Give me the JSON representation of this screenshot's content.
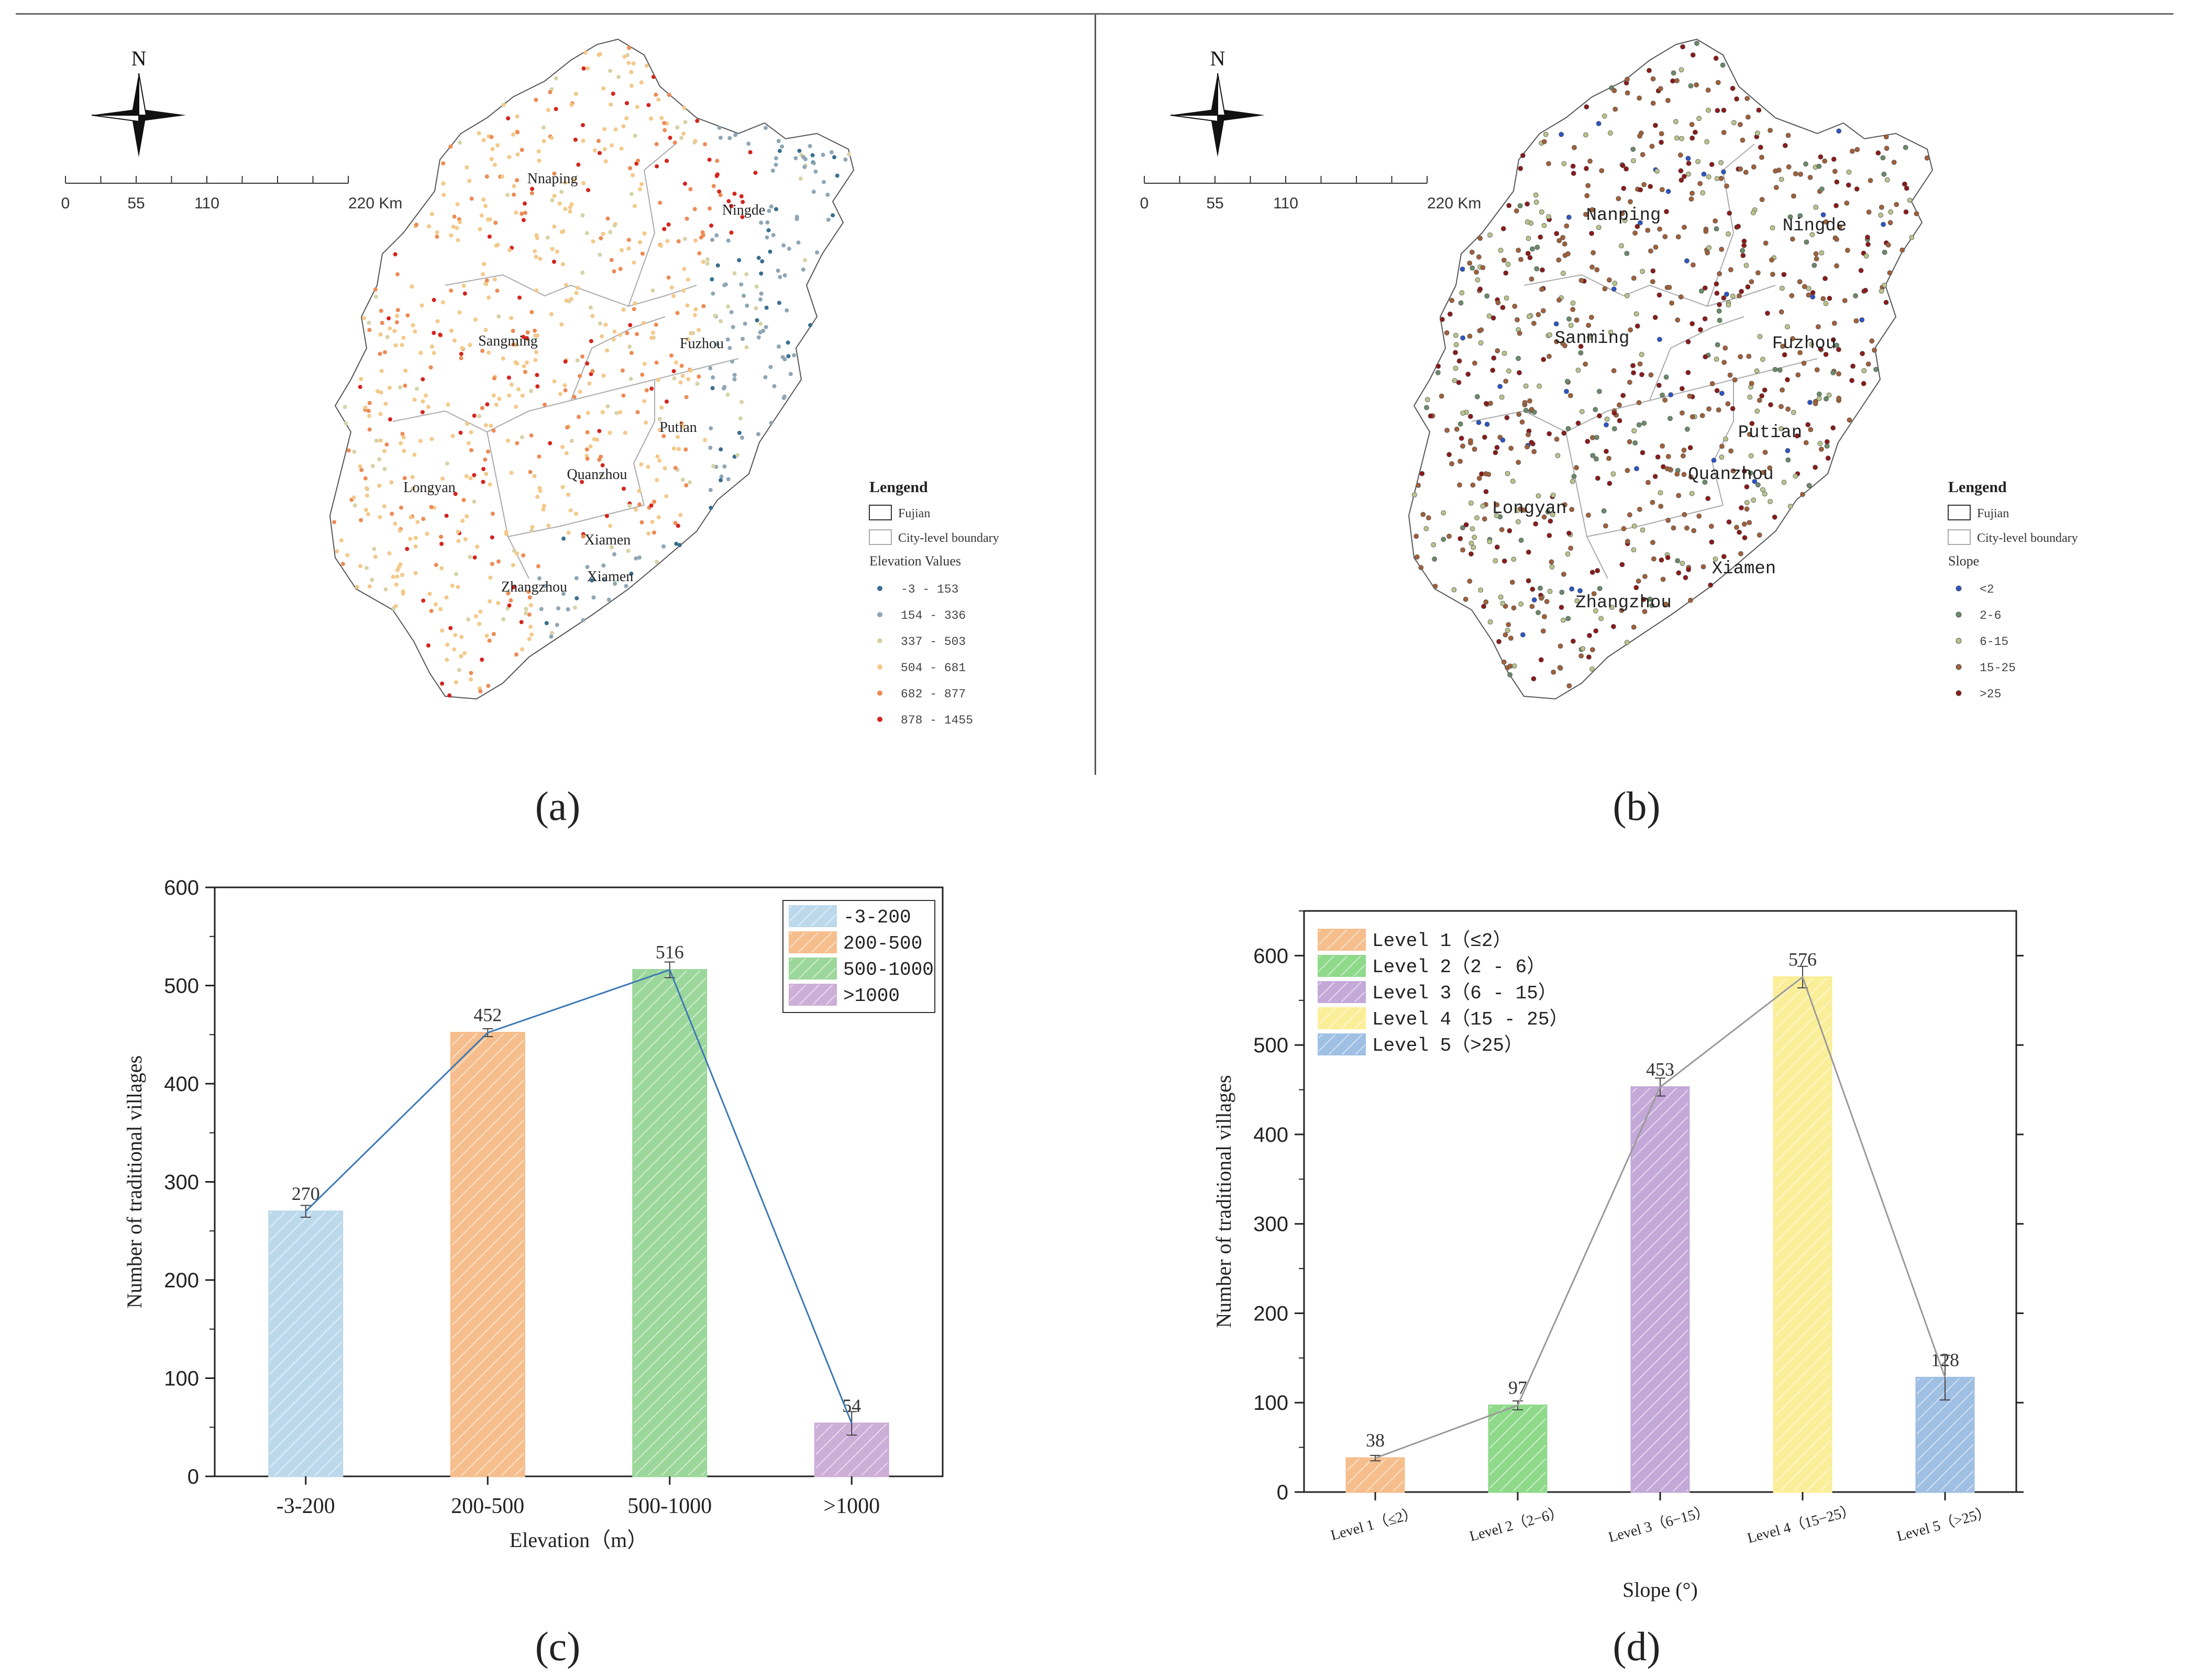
{
  "maps": [
    {
      "north_label": "N",
      "scale": {
        "ticks": [
          "0",
          "55",
          "110",
          "220 Km"
        ]
      },
      "cities": [
        "Nnaping",
        "Ningde",
        "Sangming",
        "Fuzhou",
        "Putian",
        "Longyan",
        "Quanzhou",
        "Xiamen",
        "Xiamen",
        "Zhangzhou"
      ],
      "legend": {
        "title": "Lengend",
        "fujian": "Fujian",
        "boundary": "City-level boundary",
        "values_title": "Elevation Values",
        "classes": [
          {
            "label": "-3 - 153",
            "color": "#3a6f8f"
          },
          {
            "label": "154 - 336",
            "color": "#8fa6b5"
          },
          {
            "label": "337 - 503",
            "color": "#d8d2a8"
          },
          {
            "label": "504 - 681",
            "color": "#f3c98b"
          },
          {
            "label": "682 - 877",
            "color": "#ec8b55"
          },
          {
            "label": "878 - 1455",
            "color": "#d4251f"
          }
        ]
      },
      "caption": "(a)"
    },
    {
      "north_label": "N",
      "scale": {
        "ticks": [
          "0",
          "55",
          "110",
          "220 Km"
        ]
      },
      "cities": [
        "Nanping",
        "Ningde",
        "Sanming",
        "Fuzhou",
        "Putian",
        "Quanzhou",
        "Longyan",
        "Xiamen",
        "Zhangzhou"
      ],
      "legend": {
        "title": "Lengend",
        "fujian": "Fujian",
        "boundary": "City-level boundary",
        "values_title": "Slope",
        "classes": [
          {
            "label": "<2",
            "color": "#2b55c7"
          },
          {
            "label": "2-6",
            "color": "#6a8a6a"
          },
          {
            "label": "6-15",
            "color": "#b8c48c"
          },
          {
            "label": "15-25",
            "color": "#a0603a"
          },
          {
            "label": ">25",
            "color": "#8b1a1a"
          }
        ]
      },
      "caption": "(b)"
    }
  ],
  "chart_data": [
    {
      "type": "bar",
      "caption": "(c)",
      "categories": [
        "-3-200",
        "200-500",
        "500-1000",
        ">1000"
      ],
      "values": [
        270,
        452,
        516,
        54
      ],
      "colors": [
        "#bcd9ec",
        "#f5be8c",
        "#9bd79a",
        "#cdaed7"
      ],
      "legend": [
        "-3-200",
        "200-500",
        "500-1000",
        ">1000"
      ],
      "xlabel": "Elevation（m）",
      "ylabel": "Number of traditional villages",
      "ylim": [
        0,
        600
      ],
      "yticks": [
        "0",
        "100",
        "200",
        "300",
        "400",
        "500",
        "600"
      ],
      "line_color": "#3c78b5",
      "legend_position": "top-right"
    },
    {
      "type": "bar",
      "caption": "(d)",
      "categories": [
        "Level 1（≤2）",
        "Level 2（2−6）",
        "Level 3（6−15）",
        "Level 4（15−25）",
        "Level 5（>25）"
      ],
      "values": [
        38,
        97,
        453,
        576,
        128
      ],
      "colors": [
        "#f5be8c",
        "#8fd98b",
        "#c3a8d8",
        "#fbee98",
        "#9fbfe3"
      ],
      "legend": [
        "Level 1（≤2）",
        "Level 2（2 - 6）",
        "Level 3（6 - 15）",
        "Level 4（15 - 25）",
        "Level 5（>25）"
      ],
      "xlabel": "Slope (°)",
      "ylabel": "Number of traditional villages",
      "ylim": [
        0,
        650
      ],
      "yticks": [
        "0",
        "100",
        "200",
        "300",
        "400",
        "500",
        "600"
      ],
      "line_color": "#999999",
      "legend_position": "top-left"
    }
  ]
}
